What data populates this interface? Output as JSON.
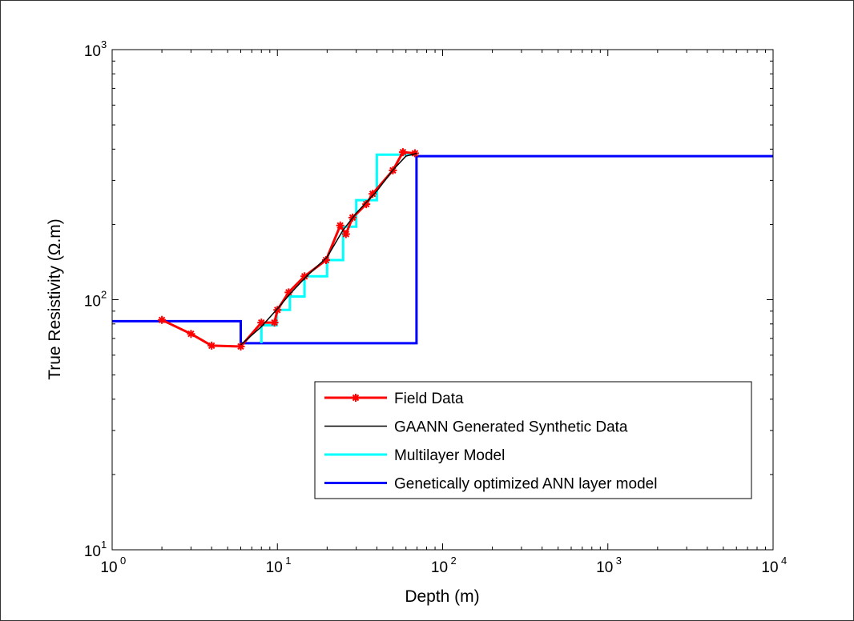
{
  "chart_data": {
    "type": "line",
    "title": "",
    "xlabel": "Depth (m)",
    "ylabel": "True Resistivity (Ω.m)",
    "xscale": "log",
    "yscale": "log",
    "xlim": [
      1,
      10000
    ],
    "ylim": [
      10,
      1000
    ],
    "x_ticks": [
      {
        "v": 1,
        "base": "10",
        "exp": "0"
      },
      {
        "v": 10,
        "base": "10",
        "exp": "1"
      },
      {
        "v": 100,
        "base": "10",
        "exp": "2"
      },
      {
        "v": 1000,
        "base": "10",
        "exp": "3"
      },
      {
        "v": 10000,
        "base": "10",
        "exp": "4"
      }
    ],
    "y_ticks": [
      {
        "v": 10,
        "base": "10",
        "exp": "1"
      },
      {
        "v": 100,
        "base": "10",
        "exp": "2"
      },
      {
        "v": 1000,
        "base": "10",
        "exp": "3"
      }
    ],
    "grid": false,
    "legend_position": "bottom-right",
    "series": [
      {
        "name": "Field Data",
        "color": "#ff0000",
        "marker": "star",
        "x": [
          2,
          3,
          4,
          6,
          8,
          9.6,
          10,
          11.7,
          14.6,
          19.7,
          24,
          26,
          28.5,
          34.5,
          37.7,
          50,
          57.5,
          68
        ],
        "y": [
          83,
          73,
          65.5,
          65,
          81,
          81,
          91,
          107,
          124,
          144,
          198,
          183,
          213,
          241,
          265,
          329,
          389,
          385
        ]
      },
      {
        "name": "GAANN Generated Synthetic Data",
        "color": "#000000",
        "marker": "none",
        "x": [
          6,
          8,
          10,
          12,
          15,
          20,
          25,
          30,
          40,
          50,
          60,
          70
        ],
        "y": [
          66,
          78,
          92,
          106,
          124,
          148,
          190,
          222,
          272,
          330,
          375,
          385
        ]
      },
      {
        "name": "Multilayer Model",
        "color": "#00ffff",
        "marker": "none",
        "x": [
          8,
          8,
          9.9,
          9.9,
          11.9,
          11.9,
          14.6,
          14.6,
          20,
          20,
          25,
          25,
          30,
          30,
          40,
          40,
          70
        ],
        "y": [
          67,
          79,
          79,
          91,
          91,
          103,
          103,
          124,
          124,
          144,
          144,
          196,
          196,
          250,
          250,
          380,
          380
        ]
      },
      {
        "name": "Genetically optimized ANN layer model",
        "color": "#0000ff",
        "marker": "none",
        "x": [
          1,
          6,
          6,
          69.5,
          69.5,
          10000
        ],
        "y": [
          82,
          82,
          67,
          67,
          375,
          375
        ]
      }
    ]
  }
}
